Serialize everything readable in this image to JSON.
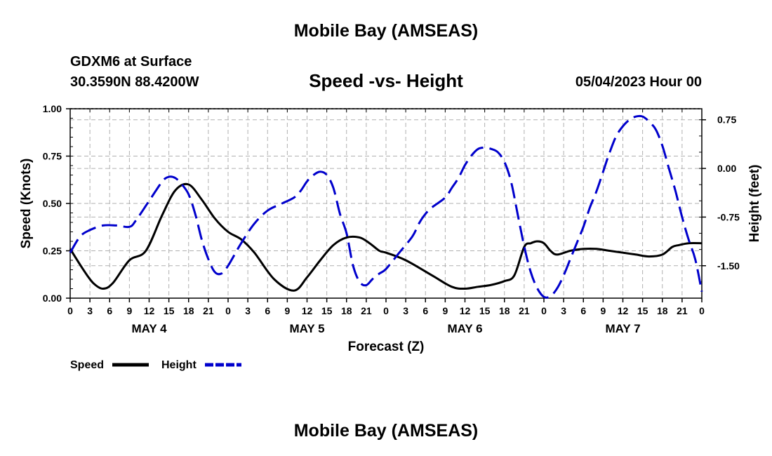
{
  "header": {
    "title": "Mobile Bay (AMSEAS)",
    "station": "GDXM6 at Surface",
    "coordinates": "30.3590N  88.4200W",
    "subtitle": "Speed -vs- Height",
    "issue_time": "05/04/2023 Hour 00"
  },
  "footer": {
    "title": "Mobile Bay (AMSEAS)"
  },
  "colors": {
    "speed": "#000000",
    "height": "#0000cc",
    "grid": "#b0b0b0"
  },
  "chart_data": {
    "type": "line",
    "xlabel": "Forecast (Z)",
    "ylabel": "Speed (Knots)",
    "y2label": "Height (feet)",
    "x_range_hours": [
      0,
      96
    ],
    "x_tick_step_hours": 3,
    "x_tick_labels": [
      "0",
      "3",
      "6",
      "9",
      "12",
      "15",
      "18",
      "21",
      "0",
      "3",
      "6",
      "9",
      "12",
      "15",
      "18",
      "21",
      "0",
      "3",
      "6",
      "9",
      "12",
      "15",
      "18",
      "21",
      "0",
      "3",
      "6",
      "9",
      "12",
      "15",
      "18",
      "21",
      "0"
    ],
    "day_labels": [
      {
        "label": "MAY 4",
        "center_hour": 12
      },
      {
        "label": "MAY 5",
        "center_hour": 36
      },
      {
        "label": "MAY 6",
        "center_hour": 60
      },
      {
        "label": "MAY 7",
        "center_hour": 84
      }
    ],
    "ylim": [
      0,
      1
    ],
    "y_ticks": [
      "0.00",
      "0.25",
      "0.50",
      "0.75",
      "1.00"
    ],
    "y_tick_values": [
      0,
      0.25,
      0.5,
      0.75,
      1.0
    ],
    "y2lim": [
      -2.0,
      0.92
    ],
    "y2_ticks": [
      "-1.50",
      "-0.75",
      "0.00",
      "0.75"
    ],
    "y2_tick_values": [
      -1.5,
      -0.75,
      0,
      0.75
    ],
    "legend": [
      {
        "name": "Speed",
        "style": "solid"
      },
      {
        "name": "Height",
        "style": "dashed"
      }
    ],
    "series": [
      {
        "name": "Speed",
        "axis": "left",
        "x": [
          0,
          2,
          3.5,
          5,
          6.5,
          9,
          11.5,
          14,
          16,
          18,
          20,
          22,
          24,
          26,
          28,
          31,
          34,
          36,
          38,
          40,
          42,
          44,
          45.5,
          47,
          48,
          51,
          55,
          58,
          60,
          62,
          64,
          66,
          67.5,
          69,
          70,
          71,
          72,
          73,
          74,
          76,
          78,
          80,
          82,
          84,
          86,
          88,
          90,
          91.5,
          92.5,
          94,
          96
        ],
        "values": [
          0.26,
          0.15,
          0.08,
          0.05,
          0.08,
          0.2,
          0.25,
          0.44,
          0.57,
          0.6,
          0.52,
          0.42,
          0.35,
          0.31,
          0.24,
          0.1,
          0.04,
          0.11,
          0.2,
          0.28,
          0.32,
          0.32,
          0.29,
          0.25,
          0.24,
          0.2,
          0.12,
          0.06,
          0.05,
          0.06,
          0.07,
          0.09,
          0.12,
          0.27,
          0.29,
          0.3,
          0.29,
          0.25,
          0.23,
          0.25,
          0.26,
          0.26,
          0.25,
          0.24,
          0.23,
          0.22,
          0.23,
          0.27,
          0.28,
          0.29,
          0.29
        ]
      },
      {
        "name": "Height",
        "axis": "right",
        "x": [
          0,
          1.5,
          3,
          5,
          7,
          9,
          10,
          12,
          14,
          15,
          16,
          17,
          18,
          19,
          20,
          21,
          22,
          23,
          24,
          26,
          28,
          30,
          32,
          34,
          35,
          36,
          37,
          38,
          39,
          40,
          41,
          42,
          43,
          44,
          45,
          46,
          47,
          48,
          50,
          52,
          53,
          54,
          55,
          57,
          58,
          59,
          60,
          61,
          62,
          63,
          64,
          65,
          66,
          67,
          68,
          69,
          70,
          71,
          72,
          73,
          74,
          75,
          76,
          77,
          78,
          79,
          80,
          81,
          82,
          83,
          84,
          85,
          86,
          87,
          88,
          89,
          90,
          91,
          92,
          93,
          94,
          95,
          96
        ],
        "values": [
          -1.3,
          -1.05,
          -0.95,
          -0.88,
          -0.88,
          -0.9,
          -0.8,
          -0.5,
          -0.2,
          -0.13,
          -0.15,
          -0.25,
          -0.4,
          -0.7,
          -1.1,
          -1.4,
          -1.6,
          -1.62,
          -1.5,
          -1.15,
          -0.85,
          -0.65,
          -0.55,
          -0.45,
          -0.35,
          -0.2,
          -0.1,
          -0.05,
          -0.1,
          -0.3,
          -0.7,
          -1.0,
          -1.5,
          -1.75,
          -1.8,
          -1.7,
          -1.62,
          -1.55,
          -1.3,
          -1.05,
          -0.85,
          -0.7,
          -0.6,
          -0.45,
          -0.3,
          -0.15,
          0.05,
          0.2,
          0.3,
          0.32,
          0.3,
          0.25,
          0.1,
          -0.2,
          -0.7,
          -1.2,
          -1.6,
          -1.85,
          -1.98,
          -1.97,
          -1.85,
          -1.65,
          -1.4,
          -1.15,
          -0.9,
          -0.6,
          -0.35,
          -0.05,
          0.25,
          0.5,
          0.65,
          0.75,
          0.8,
          0.8,
          0.72,
          0.6,
          0.35,
          0.0,
          -0.35,
          -0.75,
          -1.1,
          -1.4,
          -1.9
        ]
      }
    ]
  }
}
